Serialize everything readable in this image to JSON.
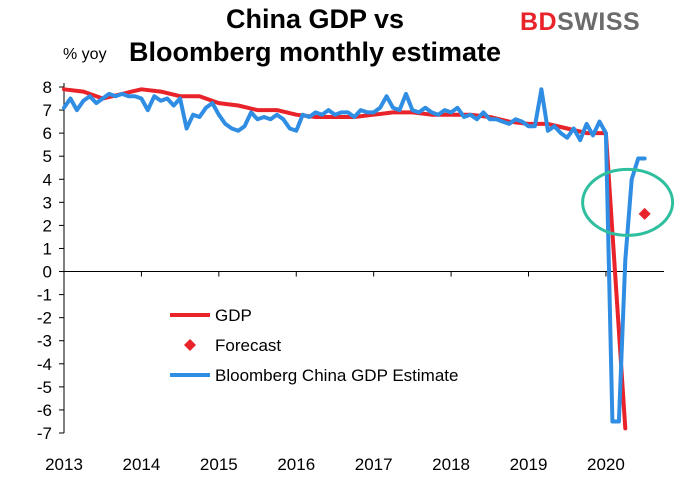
{
  "header": {
    "title_line1": "China GDP vs",
    "title_line2": "Bloomberg monthly estimate",
    "brand_bd": "BD",
    "brand_swiss": "SWISS",
    "unit": "% yoy"
  },
  "colors": {
    "gdp": "#e8232a",
    "forecast": "#e8232a",
    "estimate": "#2f8de4",
    "highlight": "#2fbf9f",
    "axis": "#000000"
  },
  "chart_data": {
    "type": "line",
    "title": "China GDP vs Bloomberg monthly estimate",
    "ylabel": "% yoy",
    "ylim": [
      -7,
      8
    ],
    "xlim": [
      2013,
      2020.75
    ],
    "yticks": [
      "8",
      "7",
      "6",
      "5",
      "4",
      "3",
      "2",
      "1",
      "0",
      "-1",
      "-2",
      "-3",
      "-4",
      "-5",
      "-6",
      "-7"
    ],
    "xticks": [
      "2013",
      "2014",
      "2015",
      "2016",
      "2017",
      "2018",
      "2019",
      "2020"
    ],
    "legend": {
      "placement": "center-left",
      "items": [
        "GDP",
        "Forecast",
        "Bloomberg China GDP Estimate"
      ]
    },
    "series": [
      {
        "name": "GDP",
        "style": "line",
        "x": [
          2013.0,
          2013.25,
          2013.5,
          2013.75,
          2014.0,
          2014.25,
          2014.5,
          2014.75,
          2015.0,
          2015.25,
          2015.5,
          2015.75,
          2016.0,
          2016.25,
          2016.5,
          2016.75,
          2017.0,
          2017.25,
          2017.5,
          2017.75,
          2018.0,
          2018.25,
          2018.5,
          2018.75,
          2019.0,
          2019.25,
          2019.5,
          2019.75,
          2020.0,
          2020.25
        ],
        "values": [
          7.9,
          7.8,
          7.5,
          7.7,
          7.9,
          7.8,
          7.6,
          7.6,
          7.3,
          7.2,
          7.0,
          7.0,
          6.8,
          6.7,
          6.7,
          6.7,
          6.8,
          6.9,
          6.9,
          6.8,
          6.8,
          6.8,
          6.7,
          6.5,
          6.4,
          6.4,
          6.2,
          6.0,
          6.0,
          -6.8
        ]
      },
      {
        "name": "Forecast",
        "style": "marker",
        "x": [
          2020.5
        ],
        "values": [
          2.5
        ]
      },
      {
        "name": "Bloomberg China GDP Estimate",
        "style": "line",
        "x": [
          2013.0,
          2013.083,
          2013.167,
          2013.25,
          2013.333,
          2013.417,
          2013.5,
          2013.583,
          2013.667,
          2013.75,
          2013.833,
          2013.917,
          2014.0,
          2014.083,
          2014.167,
          2014.25,
          2014.333,
          2014.417,
          2014.5,
          2014.583,
          2014.667,
          2014.75,
          2014.833,
          2014.917,
          2015.0,
          2015.083,
          2015.167,
          2015.25,
          2015.333,
          2015.417,
          2015.5,
          2015.583,
          2015.667,
          2015.75,
          2015.833,
          2015.917,
          2016.0,
          2016.083,
          2016.167,
          2016.25,
          2016.333,
          2016.417,
          2016.5,
          2016.583,
          2016.667,
          2016.75,
          2016.833,
          2016.917,
          2017.0,
          2017.083,
          2017.167,
          2017.25,
          2017.333,
          2017.417,
          2017.5,
          2017.583,
          2017.667,
          2017.75,
          2017.833,
          2017.917,
          2018.0,
          2018.083,
          2018.167,
          2018.25,
          2018.333,
          2018.417,
          2018.5,
          2018.583,
          2018.667,
          2018.75,
          2018.833,
          2018.917,
          2019.0,
          2019.083,
          2019.167,
          2019.25,
          2019.333,
          2019.417,
          2019.5,
          2019.583,
          2019.667,
          2019.75,
          2019.833,
          2019.917,
          2020.0,
          2020.083,
          2020.167,
          2020.25,
          2020.333,
          2020.417,
          2020.5
        ],
        "values": [
          7.1,
          7.5,
          7.0,
          7.4,
          7.6,
          7.3,
          7.5,
          7.7,
          7.6,
          7.7,
          7.6,
          7.6,
          7.5,
          7.0,
          7.6,
          7.4,
          7.5,
          7.2,
          7.5,
          6.2,
          6.8,
          6.7,
          7.1,
          7.3,
          6.8,
          6.4,
          6.2,
          6.1,
          6.3,
          6.9,
          6.6,
          6.7,
          6.6,
          6.8,
          6.6,
          6.2,
          6.1,
          6.8,
          6.7,
          6.9,
          6.8,
          7.0,
          6.8,
          6.9,
          6.9,
          6.7,
          7.0,
          6.9,
          6.9,
          7.1,
          7.6,
          7.1,
          7.0,
          7.7,
          7.0,
          6.9,
          7.1,
          6.9,
          6.8,
          7.0,
          6.9,
          7.1,
          6.7,
          6.8,
          6.6,
          6.9,
          6.6,
          6.6,
          6.5,
          6.4,
          6.6,
          6.5,
          6.3,
          6.3,
          7.9,
          6.1,
          6.3,
          6.0,
          5.8,
          6.2,
          5.7,
          6.4,
          5.9,
          6.5,
          6.0,
          -6.5,
          -6.5,
          0.5,
          4.0,
          4.9,
          4.9
        ]
      }
    ]
  }
}
